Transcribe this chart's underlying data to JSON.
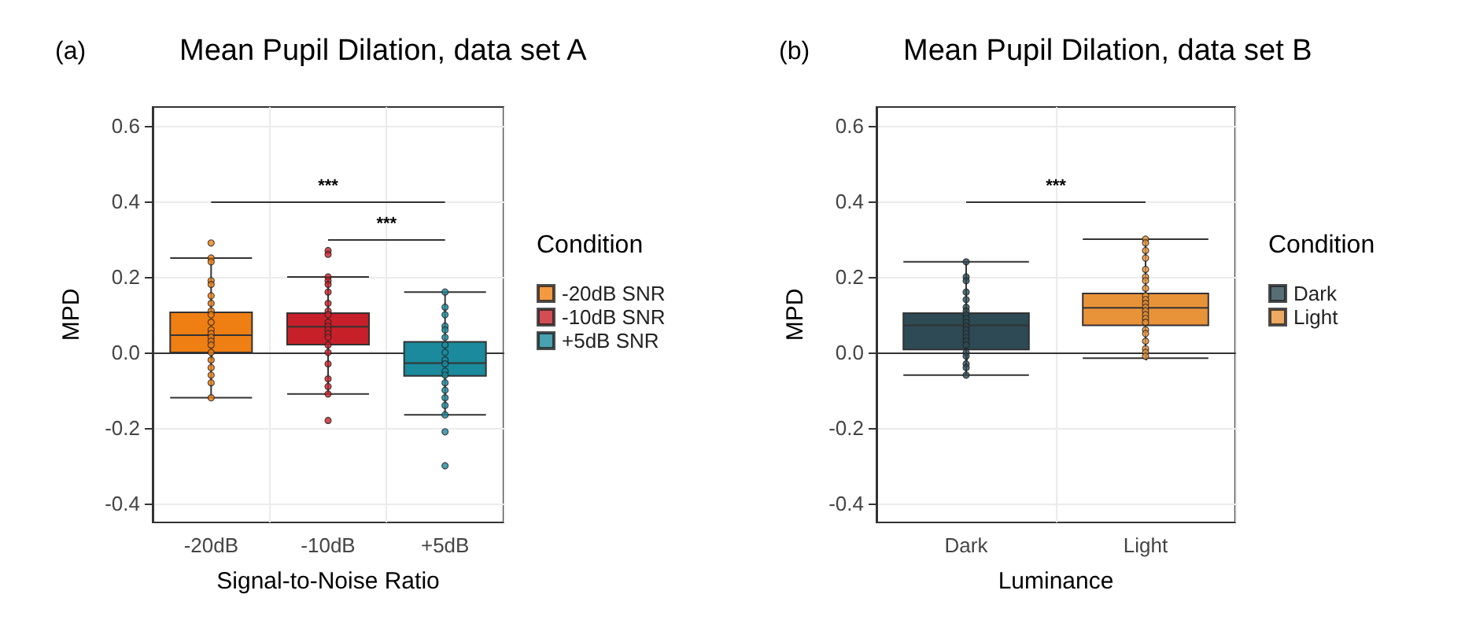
{
  "chart_data": [
    {
      "type": "box",
      "title": "Mean Pupil Dilation, data set A",
      "xlabel": "Signal-to-Noise Ratio",
      "ylabel": "MPD",
      "legend_title": "Condition",
      "annotations": [
        "(a)",
        "***",
        "***"
      ],
      "categories": [
        "-20dB",
        "-10dB",
        "+5dB"
      ],
      "boxes": [
        {
          "low": -0.12,
          "q1": 0.0,
          "median": 0.046,
          "q3": 0.106,
          "high": 0.25
        },
        {
          "low": -0.11,
          "q1": 0.021,
          "median": 0.068,
          "q3": 0.104,
          "high": 0.2
        },
        {
          "low": -0.165,
          "q1": -0.062,
          "median": -0.028,
          "q3": 0.028,
          "high": 0.16
        }
      ],
      "colors": [
        "#f07f13",
        "#c8202a",
        "#1a8a9c"
      ],
      "ylim": [
        -0.45,
        0.65
      ],
      "yticks": [
        -0.4,
        -0.2,
        {
          "value": 0,
          "label": "0.0"
        },
        0.2,
        0.4,
        0.6
      ],
      "grid": true,
      "legend": "right",
      "marker": "circle",
      "series": [
        {
          "type": "scatter",
          "name": "-20dB SNR",
          "color": "#f07f13",
          "x": [
            "-20dB",
            "-20dB",
            "-20dB",
            "-20dB",
            "-20dB",
            "-20dB",
            "-20dB",
            "-20dB",
            "-20dB",
            "-20dB",
            "-20dB",
            "-20dB",
            "-20dB",
            "-20dB",
            "-20dB",
            "-20dB",
            "-20dB",
            "-20dB",
            "-20dB",
            "-20dB",
            "-20dB"
          ],
          "values": [
            0.29,
            0.25,
            0.24,
            0.19,
            0.18,
            0.15,
            0.13,
            0.11,
            0.1,
            0.08,
            0.06,
            0.05,
            0.04,
            0.03,
            0.02,
            0.0,
            -0.02,
            -0.04,
            -0.06,
            -0.08,
            -0.12
          ]
        },
        {
          "type": "scatter",
          "name": "-10dB SNR",
          "color": "#c8202a",
          "x": [
            "-10dB",
            "-10dB",
            "-10dB",
            "-10dB",
            "-10dB",
            "-10dB",
            "-10dB",
            "-10dB",
            "-10dB",
            "-10dB",
            "-10dB",
            "-10dB",
            "-10dB",
            "-10dB",
            "-10dB",
            "-10dB",
            "-10dB",
            "-10dB",
            "-10dB",
            "-10dB",
            "-10dB"
          ],
          "values": [
            0.27,
            0.26,
            0.2,
            0.19,
            0.18,
            0.16,
            0.13,
            0.11,
            0.1,
            0.08,
            0.07,
            0.06,
            0.05,
            0.04,
            0.02,
            0.0,
            -0.03,
            -0.07,
            -0.09,
            -0.11,
            -0.18
          ]
        },
        {
          "type": "scatter",
          "name": "+5dB SNR",
          "color": "#1a8a9c",
          "x": [
            "+5dB",
            "+5dB",
            "+5dB",
            "+5dB",
            "+5dB",
            "+5dB",
            "+5dB",
            "+5dB",
            "+5dB",
            "+5dB",
            "+5dB",
            "+5dB",
            "+5dB",
            "+5dB",
            "+5dB",
            "+5dB",
            "+5dB",
            "+5dB",
            "+5dB"
          ],
          "values": [
            0.16,
            0.12,
            0.1,
            0.07,
            0.06,
            0.04,
            0.02,
            0.0,
            -0.02,
            -0.03,
            -0.05,
            -0.06,
            -0.08,
            -0.1,
            -0.12,
            -0.14,
            -0.165,
            -0.21,
            -0.3
          ]
        }
      ]
    },
    {
      "type": "box",
      "title": "Mean Pupil Dilation, data set B",
      "xlabel": "Luminance",
      "ylabel": "MPD",
      "legend_title": "Condition",
      "annotations": [
        "(b)",
        "***"
      ],
      "categories": [
        "Dark",
        "Light"
      ],
      "boxes": [
        {
          "low": -0.06,
          "q1": 0.008,
          "median": 0.072,
          "q3": 0.104,
          "high": 0.24
        },
        {
          "low": -0.015,
          "q1": 0.072,
          "median": 0.118,
          "q3": 0.156,
          "high": 0.3
        }
      ],
      "colors": [
        "#2d4a55",
        "#e8933a"
      ],
      "ylim": [
        -0.45,
        0.65
      ],
      "yticks": [
        -0.4,
        -0.2,
        {
          "value": 0,
          "label": "0.0"
        },
        0.2,
        0.4,
        0.6
      ],
      "grid": true,
      "legend": "right",
      "marker": "circle",
      "series": [
        {
          "type": "scatter",
          "name": "Dark",
          "color": "#2d4a55",
          "x": [
            "Dark",
            "Dark",
            "Dark",
            "Dark",
            "Dark",
            "Dark",
            "Dark",
            "Dark",
            "Dark",
            "Dark",
            "Dark",
            "Dark",
            "Dark",
            "Dark",
            "Dark",
            "Dark",
            "Dark",
            "Dark",
            "Dark",
            "Dark",
            "Dark"
          ],
          "values": [
            0.24,
            0.2,
            0.19,
            0.16,
            0.14,
            0.12,
            0.11,
            0.1,
            0.09,
            0.08,
            0.07,
            0.06,
            0.05,
            0.04,
            0.03,
            0.02,
            0.0,
            -0.01,
            -0.03,
            -0.04,
            -0.06
          ]
        },
        {
          "type": "scatter",
          "name": "Light",
          "color": "#e8933a",
          "x": [
            "Light",
            "Light",
            "Light",
            "Light",
            "Light",
            "Light",
            "Light",
            "Light",
            "Light",
            "Light",
            "Light",
            "Light",
            "Light",
            "Light",
            "Light",
            "Light",
            "Light",
            "Light",
            "Light",
            "Light",
            "Light",
            "Light"
          ],
          "values": [
            0.3,
            0.29,
            0.27,
            0.25,
            0.22,
            0.2,
            0.19,
            0.17,
            0.15,
            0.14,
            0.13,
            0.12,
            0.11,
            0.1,
            0.09,
            0.08,
            0.06,
            0.05,
            0.03,
            0.01,
            0.0,
            -0.01
          ]
        }
      ]
    }
  ]
}
